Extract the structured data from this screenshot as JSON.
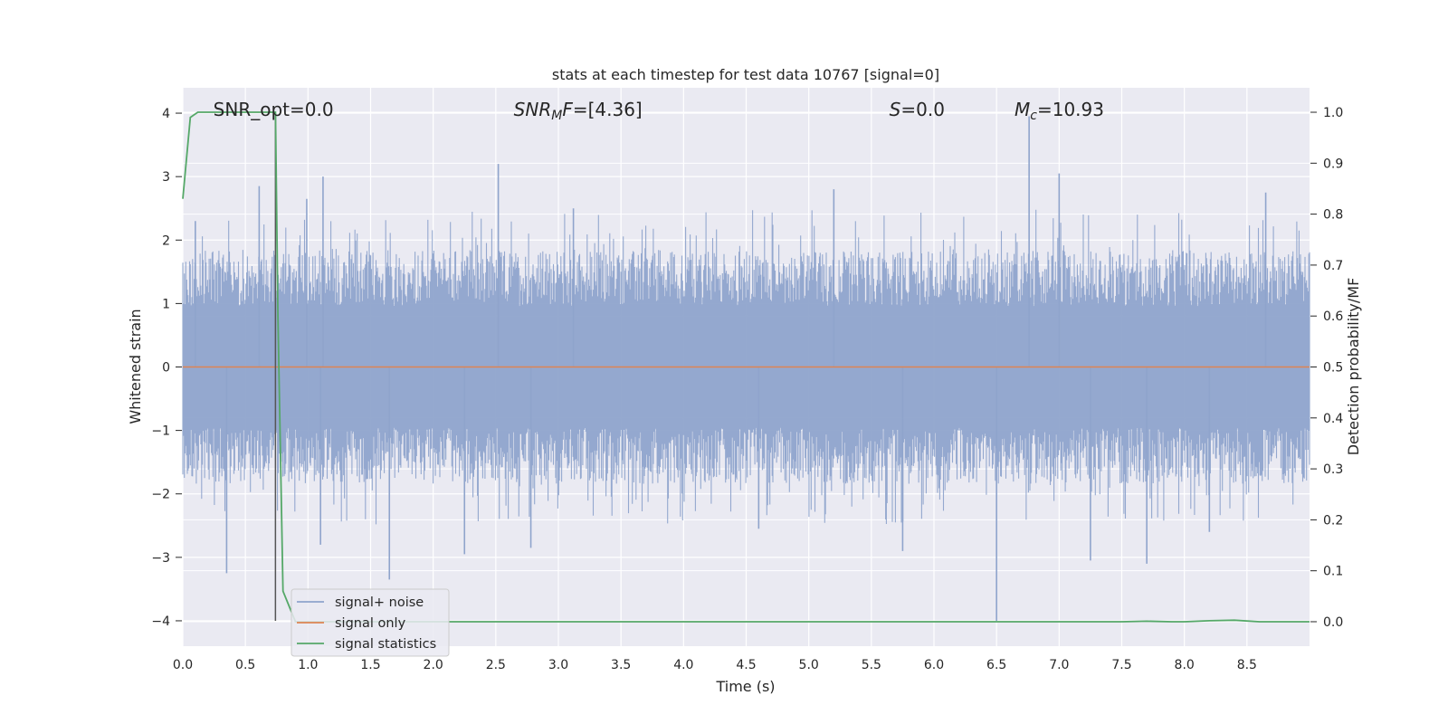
{
  "chart_data": {
    "type": "line",
    "title": "stats at each timestep for test data 10767 [signal=0]",
    "xlabel": "Time (s)",
    "ylabel": "Whitened strain",
    "ylabel_right": "Detection probability/MF",
    "xlim": [
      0.0,
      9.0
    ],
    "ylim": [
      -4.4,
      4.4
    ],
    "ylim_right": [
      -0.048,
      1.048
    ],
    "x_ticks": [
      "0.0",
      "0.5",
      "1.0",
      "1.5",
      "2.0",
      "2.5",
      "3.0",
      "3.5",
      "4.0",
      "4.5",
      "5.0",
      "5.5",
      "6.0",
      "6.5",
      "7.0",
      "7.5",
      "8.0",
      "8.5"
    ],
    "y_ticks": [
      "4",
      "3",
      "2",
      "1",
      "0",
      "−1",
      "−2",
      "−3",
      "−4"
    ],
    "y_ticks_right": [
      "1.0",
      "0.9",
      "0.8",
      "0.7",
      "0.6",
      "0.5",
      "0.4",
      "0.3",
      "0.2",
      "0.1",
      "0.0"
    ],
    "grid": true,
    "legend_position": "lower-left",
    "annotations": [
      {
        "text": "SNR_opt=0.0",
        "x": 0.2,
        "y": 4.0
      },
      {
        "text": "SNR_MF=[4.36]",
        "x": 2.6,
        "y": 4.0
      },
      {
        "text": "S=0.0",
        "x": 5.6,
        "y": 4.0
      },
      {
        "text": "M_c=10.93",
        "x": 6.6,
        "y": 4.0
      }
    ],
    "vline": {
      "x": 0.74,
      "y_range": [
        -4.0,
        4.0
      ],
      "color": "#555555"
    },
    "series": [
      {
        "name": "signal+ noise",
        "axis": "left",
        "color": "#8fa4cc",
        "x_range": [
          0.0,
          9.0
        ],
        "envelope": {
          "typical_amplitude": 1.6,
          "max": 3.95,
          "min": -4.0
        },
        "notable_peaks": [
          {
            "x": 0.1,
            "y": 2.3
          },
          {
            "x": 0.35,
            "y": -3.25
          },
          {
            "x": 0.61,
            "y": 2.85
          },
          {
            "x": 0.99,
            "y": 2.65
          },
          {
            "x": 1.1,
            "y": -2.8
          },
          {
            "x": 1.12,
            "y": 3.0
          },
          {
            "x": 1.65,
            "y": -3.35
          },
          {
            "x": 2.25,
            "y": -2.95
          },
          {
            "x": 2.52,
            "y": 3.2
          },
          {
            "x": 2.78,
            "y": -2.85
          },
          {
            "x": 3.12,
            "y": 2.5
          },
          {
            "x": 4.6,
            "y": -2.55
          },
          {
            "x": 5.2,
            "y": 2.8
          },
          {
            "x": 5.75,
            "y": -2.9
          },
          {
            "x": 6.5,
            "y": -4.0
          },
          {
            "x": 6.76,
            "y": 3.95
          },
          {
            "x": 7.0,
            "y": 3.05
          },
          {
            "x": 7.25,
            "y": -3.05
          },
          {
            "x": 7.7,
            "y": -3.1
          },
          {
            "x": 8.2,
            "y": -2.6
          },
          {
            "x": 8.65,
            "y": 2.75
          }
        ]
      },
      {
        "name": "signal only",
        "axis": "left",
        "color": "#dd8452",
        "x": [
          0.0,
          9.0
        ],
        "y": [
          0.0,
          0.0
        ]
      },
      {
        "name": "signal statistics",
        "axis": "right",
        "color": "#55a868",
        "x": [
          0.0,
          0.06,
          0.12,
          0.3,
          0.5,
          0.7,
          0.74,
          0.76,
          0.8,
          0.85,
          0.9,
          1.0,
          2.0,
          3.0,
          4.0,
          5.0,
          6.0,
          7.0,
          7.5,
          7.7,
          7.9,
          8.0,
          8.2,
          8.4,
          8.6,
          9.0
        ],
        "y": [
          0.83,
          0.99,
          1.0,
          1.0,
          1.0,
          1.0,
          1.0,
          0.6,
          0.06,
          0.03,
          0.0,
          0.0,
          0.0,
          0.0,
          0.0,
          0.0,
          0.0,
          0.0,
          0.0,
          0.001,
          0.0,
          0.0,
          0.002,
          0.003,
          0.0,
          0.0
        ]
      }
    ]
  }
}
